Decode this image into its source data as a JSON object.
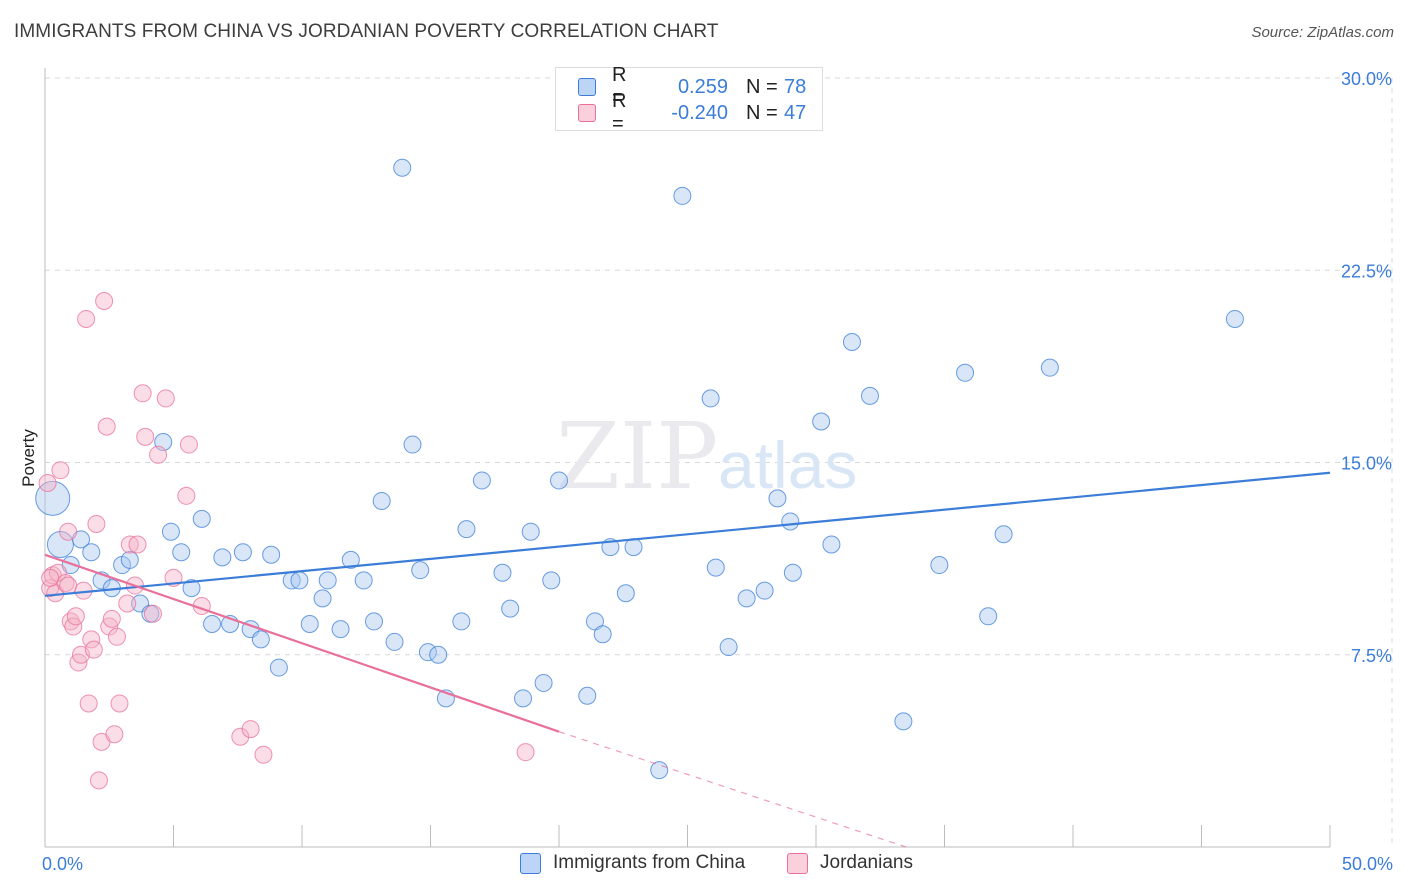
{
  "title": "IMMIGRANTS FROM CHINA VS JORDANIAN POVERTY CORRELATION CHART",
  "source": "Source: ZipAtlas.com",
  "colors": {
    "blue": "#3b7dd8",
    "blue_fill": "#a9c8f0",
    "pink": "#e8709b",
    "pink_fill": "#f5b4c8",
    "grid": "#d8d8d8"
  },
  "stats": {
    "rows": [
      {
        "r_label": "R =",
        "r_value": "0.259",
        "n_label": "N =",
        "n_value": "78"
      },
      {
        "r_label": "R =",
        "r_value": "-0.240",
        "n_label": "N =",
        "n_value": "47"
      }
    ]
  },
  "legend": {
    "items": [
      {
        "label": "Immigrants from China"
      },
      {
        "label": "Jordanians"
      }
    ]
  },
  "chart_data": {
    "type": "scatter",
    "title": "IMMIGRANTS FROM CHINA VS JORDANIAN POVERTY CORRELATION CHART",
    "xlabel": "",
    "ylabel": "Poverty",
    "xlim": [
      0,
      50
    ],
    "ylim": [
      0,
      30
    ],
    "x_tick_labels": [
      "0.0%",
      "50.0%"
    ],
    "y_ticks": [
      7.5,
      15.0,
      22.5,
      30.0
    ],
    "y_tick_labels": [
      "7.5%",
      "15.0%",
      "22.5%",
      "30.0%"
    ],
    "grid": true,
    "legend_position": "bottom",
    "watermark": "ZIPatlas",
    "series": [
      {
        "name": "Immigrants from China",
        "color": "#3b7dd8",
        "trend": {
          "x": [
            0,
            50
          ],
          "y": [
            9.8,
            14.6
          ]
        },
        "points": [
          [
            0.3,
            13.6,
            3
          ],
          [
            0.6,
            11.8,
            2
          ],
          [
            1.0,
            11.0,
            1
          ],
          [
            1.4,
            12.0,
            1
          ],
          [
            1.8,
            11.5,
            1
          ],
          [
            2.2,
            10.4,
            1
          ],
          [
            2.6,
            10.1,
            1
          ],
          [
            3.0,
            11.0,
            1
          ],
          [
            3.3,
            11.2,
            1
          ],
          [
            3.7,
            9.5,
            1
          ],
          [
            4.1,
            9.1,
            1
          ],
          [
            4.6,
            15.8,
            1
          ],
          [
            4.9,
            12.3,
            1
          ],
          [
            5.3,
            11.5,
            1
          ],
          [
            5.7,
            10.1,
            1
          ],
          [
            6.1,
            12.8,
            1
          ],
          [
            6.5,
            8.7,
            1
          ],
          [
            6.9,
            11.3,
            1
          ],
          [
            7.2,
            8.7,
            1
          ],
          [
            7.7,
            11.5,
            1
          ],
          [
            8.0,
            8.5,
            1
          ],
          [
            8.4,
            8.1,
            1
          ],
          [
            8.8,
            11.4,
            1
          ],
          [
            9.1,
            7.0,
            1
          ],
          [
            9.6,
            10.4,
            1
          ],
          [
            9.9,
            10.4,
            1
          ],
          [
            10.3,
            8.7,
            1
          ],
          [
            10.8,
            9.7,
            1
          ],
          [
            11.0,
            10.4,
            1
          ],
          [
            11.5,
            8.5,
            1
          ],
          [
            11.9,
            11.2,
            1
          ],
          [
            12.4,
            10.4,
            1
          ],
          [
            12.8,
            8.8,
            1
          ],
          [
            13.1,
            13.5,
            1
          ],
          [
            13.6,
            8.0,
            1
          ],
          [
            13.9,
            26.5,
            1
          ],
          [
            14.3,
            15.7,
            1
          ],
          [
            14.6,
            10.8,
            1
          ],
          [
            14.9,
            7.6,
            1
          ],
          [
            15.3,
            7.5,
            1
          ],
          [
            15.6,
            5.8,
            1
          ],
          [
            16.2,
            8.8,
            1
          ],
          [
            16.4,
            12.4,
            1
          ],
          [
            17.0,
            14.3,
            1
          ],
          [
            17.8,
            10.7,
            1
          ],
          [
            18.1,
            9.3,
            1
          ],
          [
            18.6,
            5.8,
            1
          ],
          [
            18.9,
            12.3,
            1
          ],
          [
            19.4,
            6.4,
            1
          ],
          [
            19.7,
            10.4,
            1
          ],
          [
            20.0,
            14.3,
            1
          ],
          [
            21.1,
            5.9,
            1
          ],
          [
            21.4,
            8.8,
            1
          ],
          [
            21.7,
            8.3,
            1
          ],
          [
            22.0,
            11.7,
            1
          ],
          [
            22.6,
            9.9,
            1
          ],
          [
            22.9,
            11.7,
            1
          ],
          [
            23.9,
            3.0,
            1
          ],
          [
            24.8,
            25.4,
            1
          ],
          [
            25.9,
            17.5,
            1
          ],
          [
            26.1,
            10.9,
            1
          ],
          [
            26.6,
            7.8,
            1
          ],
          [
            27.3,
            9.7,
            1
          ],
          [
            28.0,
            10.0,
            1
          ],
          [
            28.5,
            13.6,
            1
          ],
          [
            29.0,
            12.7,
            1
          ],
          [
            29.1,
            10.7,
            1
          ],
          [
            30.2,
            16.6,
            1
          ],
          [
            30.6,
            11.8,
            1
          ],
          [
            31.4,
            19.7,
            1
          ],
          [
            32.1,
            17.6,
            1
          ],
          [
            33.4,
            4.9,
            1
          ],
          [
            34.8,
            11.0,
            1
          ],
          [
            35.8,
            18.5,
            1
          ],
          [
            36.7,
            9.0,
            1
          ],
          [
            37.3,
            12.2,
            1
          ],
          [
            39.1,
            18.7,
            1
          ],
          [
            46.3,
            20.6,
            1
          ]
        ]
      },
      {
        "name": "Jordanians",
        "color": "#e8709b",
        "trend": {
          "x": [
            0,
            20
          ],
          "y": [
            11.4,
            4.5
          ]
        },
        "trend_extension": {
          "x": [
            20,
            33.5
          ],
          "y": [
            4.5,
            0.0
          ]
        },
        "points": [
          [
            0.1,
            14.2,
            1
          ],
          [
            0.2,
            10.1,
            1
          ],
          [
            0.3,
            10.6,
            1
          ],
          [
            0.4,
            9.9,
            1
          ],
          [
            0.5,
            10.7,
            1
          ],
          [
            0.6,
            14.7,
            1
          ],
          [
            0.8,
            10.3,
            1
          ],
          [
            0.9,
            10.2,
            1
          ],
          [
            0.9,
            12.3,
            1
          ],
          [
            1.0,
            8.8,
            1
          ],
          [
            1.1,
            8.6,
            1
          ],
          [
            1.2,
            9.0,
            1
          ],
          [
            1.3,
            7.2,
            1
          ],
          [
            1.4,
            7.5,
            1
          ],
          [
            1.5,
            10.0,
            1
          ],
          [
            1.6,
            20.6,
            1
          ],
          [
            1.7,
            5.6,
            1
          ],
          [
            1.8,
            8.1,
            1
          ],
          [
            1.9,
            7.7,
            1
          ],
          [
            2.0,
            12.6,
            1
          ],
          [
            2.1,
            2.6,
            1
          ],
          [
            2.2,
            4.1,
            1
          ],
          [
            2.3,
            21.3,
            1
          ],
          [
            2.4,
            16.4,
            1
          ],
          [
            2.5,
            8.6,
            1
          ],
          [
            2.6,
            8.9,
            1
          ],
          [
            2.7,
            4.4,
            1
          ],
          [
            2.8,
            8.2,
            1
          ],
          [
            2.9,
            5.6,
            1
          ],
          [
            3.2,
            9.5,
            1
          ],
          [
            3.3,
            11.8,
            1
          ],
          [
            3.5,
            10.2,
            1
          ],
          [
            3.6,
            11.8,
            1
          ],
          [
            3.8,
            17.7,
            1
          ],
          [
            3.9,
            16.0,
            1
          ],
          [
            4.2,
            9.1,
            1
          ],
          [
            4.4,
            15.3,
            1
          ],
          [
            4.7,
            17.5,
            1
          ],
          [
            5.0,
            10.5,
            1
          ],
          [
            5.5,
            13.7,
            1
          ],
          [
            5.6,
            15.7,
            1
          ],
          [
            6.1,
            9.4,
            1
          ],
          [
            7.6,
            4.3,
            1
          ],
          [
            8.0,
            4.6,
            1
          ],
          [
            8.5,
            3.6,
            1
          ],
          [
            18.7,
            3.7,
            1
          ],
          [
            0.2,
            10.5,
            1
          ]
        ]
      }
    ]
  }
}
